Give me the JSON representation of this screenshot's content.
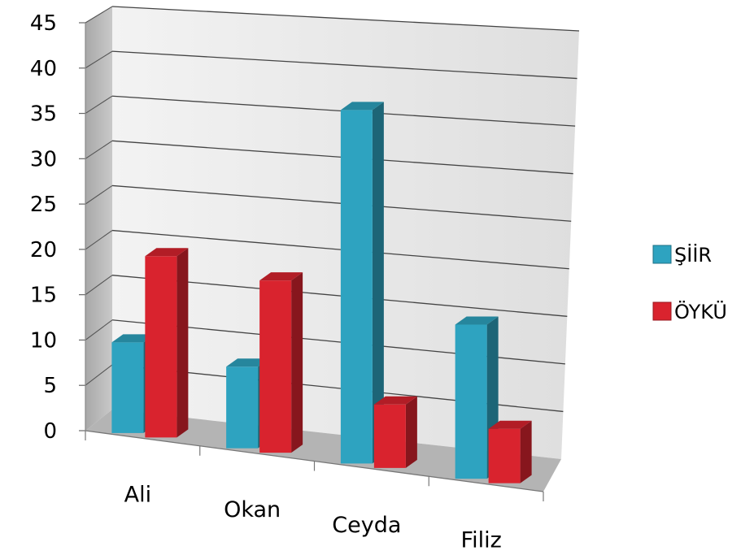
{
  "chart_data": {
    "type": "bar",
    "subtype": "3d-clustered-column",
    "categories": [
      "Ali",
      "Okan",
      "Ceyda",
      "Filiz"
    ],
    "series": [
      {
        "name": "ŞİİR",
        "values": [
          10,
          9,
          39,
          17
        ],
        "color": "#2ea3c0"
      },
      {
        "name": "ÖYKÜ",
        "values": [
          20,
          19,
          7,
          6
        ],
        "color": "#d9232e"
      }
    ],
    "ylim": [
      0,
      45
    ],
    "yticks": [
      "0",
      "5",
      "10",
      "15",
      "20",
      "25",
      "30",
      "35",
      "40",
      "45"
    ],
    "grid": true,
    "legend_position": "right",
    "title": "",
    "xlabel": "",
    "ylabel": ""
  }
}
